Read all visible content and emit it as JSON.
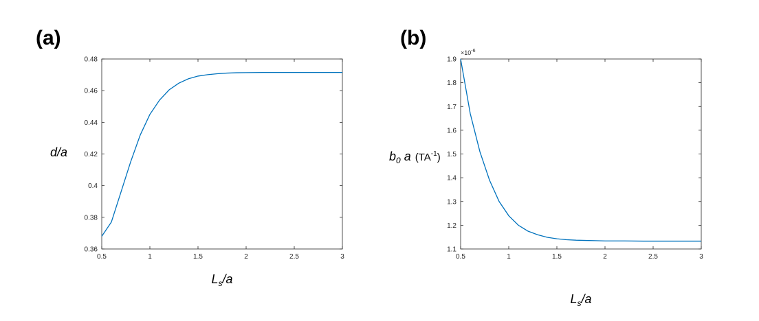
{
  "panels": {
    "a": {
      "label": "(a)"
    },
    "b": {
      "label": "(b)"
    }
  },
  "chart_data": [
    {
      "type": "line",
      "xlabel": "L_s/a",
      "ylabel": "d/a",
      "xlim": [
        0.5,
        3
      ],
      "ylim": [
        0.36,
        0.48
      ],
      "xticks": [
        0.5,
        1,
        1.5,
        2,
        2.5,
        3
      ],
      "xtick_labels": [
        "0.5",
        "1",
        "1.5",
        "2",
        "2.5",
        "3"
      ],
      "yticks": [
        0.36,
        0.38,
        0.4,
        0.42,
        0.44,
        0.46,
        0.48
      ],
      "ytick_labels": [
        "0.36",
        "0.38",
        "0.4",
        "0.42",
        "0.44",
        "0.46",
        "0.48"
      ],
      "grid": false,
      "series": [
        {
          "color": "#0072BD",
          "x": [
            0.5,
            0.6,
            0.7,
            0.8,
            0.9,
            1.0,
            1.1,
            1.2,
            1.3,
            1.4,
            1.5,
            1.6,
            1.7,
            1.8,
            1.9,
            2.0,
            2.2,
            2.4,
            2.6,
            2.8,
            3.0
          ],
          "y": [
            0.368,
            0.377,
            0.396,
            0.415,
            0.432,
            0.445,
            0.454,
            0.4605,
            0.4647,
            0.4675,
            0.4692,
            0.4701,
            0.4707,
            0.4711,
            0.4713,
            0.4714,
            0.4715,
            0.4715,
            0.4715,
            0.4715,
            0.4715
          ]
        }
      ]
    },
    {
      "type": "line",
      "xlabel": "L_s/a",
      "ylabel_main": "b",
      "ylabel_sub": "0",
      "ylabel_rest": " a",
      "ylabel_unit": "(TA",
      "ylabel_unit_exp": "-1",
      "ylabel_unit_close": ")",
      "exponent_base": "×10",
      "exponent_power": "-6",
      "xlim": [
        0.5,
        3
      ],
      "ylim": [
        1.1,
        1.9
      ],
      "xticks": [
        0.5,
        1,
        1.5,
        2,
        2.5,
        3
      ],
      "xtick_labels": [
        "0.5",
        "1",
        "1.5",
        "2",
        "2.5",
        "3"
      ],
      "yticks": [
        1.1,
        1.2,
        1.3,
        1.4,
        1.5,
        1.6,
        1.7,
        1.8,
        1.9
      ],
      "ytick_labels": [
        "1.1",
        "1.2",
        "1.3",
        "1.4",
        "1.5",
        "1.6",
        "1.7",
        "1.8",
        "1.9"
      ],
      "grid": false,
      "series": [
        {
          "color": "#0072BD",
          "x": [
            0.5,
            0.6,
            0.7,
            0.8,
            0.9,
            1.0,
            1.1,
            1.2,
            1.3,
            1.4,
            1.5,
            1.6,
            1.7,
            1.8,
            1.9,
            2.0,
            2.2,
            2.4,
            2.6,
            2.8,
            3.0
          ],
          "y": [
            1.9,
            1.67,
            1.51,
            1.39,
            1.3,
            1.24,
            1.2,
            1.175,
            1.16,
            1.149,
            1.143,
            1.139,
            1.137,
            1.136,
            1.135,
            1.134,
            1.134,
            1.133,
            1.133,
            1.133,
            1.133
          ]
        }
      ]
    }
  ]
}
